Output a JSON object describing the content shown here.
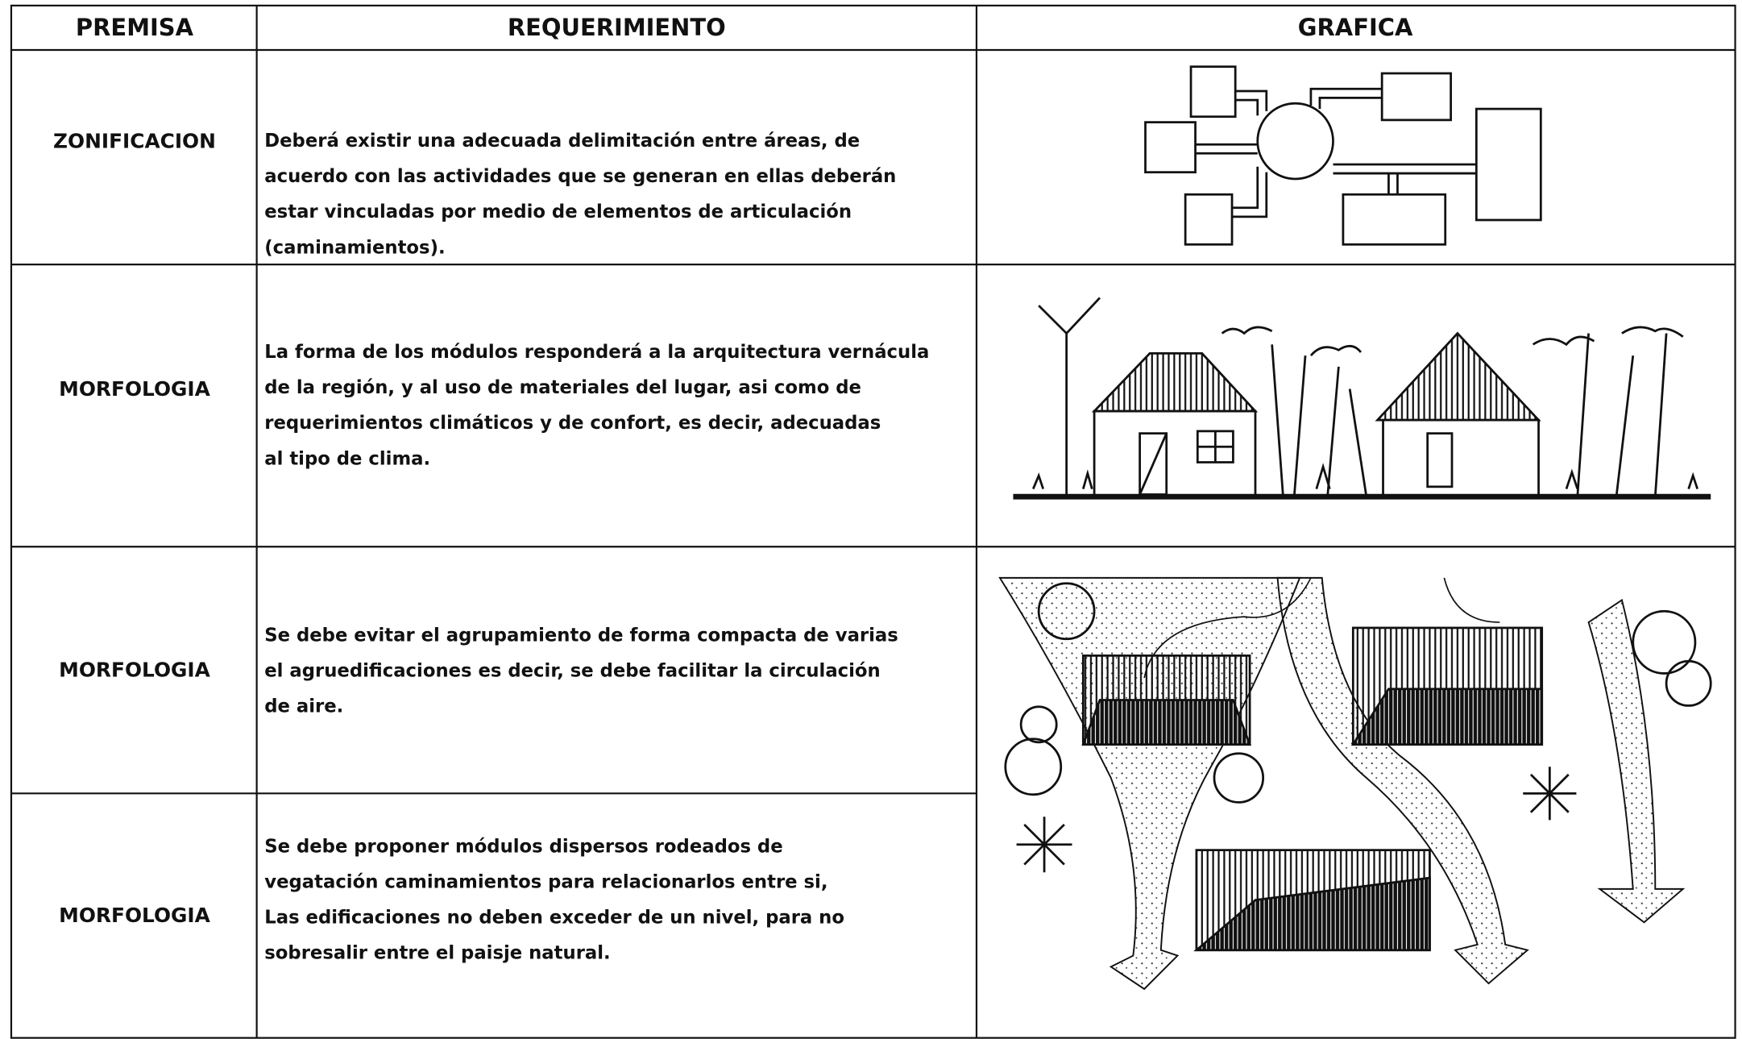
{
  "table": {
    "header": [
      "PREMISA",
      "REQUERIMIENTO",
      "GRAFICA"
    ],
    "rows": [
      {
        "premisa": "ZONIFICACION",
        "requerimiento": [
          "Deberá existir una adecuada delimitación entre áreas, de",
          "acuerdo con las actividades que se generan en ellas deberán",
          "estar vinculadas por medio de elementos de articulación",
          "(caminamientos)."
        ]
      },
      {
        "premisa": "MORFOLOGIA",
        "requerimiento": [
          "La forma de los módulos responderá a la arquitectura vernácula",
          "de la región, y al uso de materiales del lugar, asi como de",
          "requerimientos climáticos y de confort, es decir, adecuadas",
          "al tipo de clima."
        ]
      },
      {
        "premisa": "MORFOLOGIA",
        "requerimiento": [
          "Se debe evitar el agrupamiento de forma compacta de varias",
          "el agruedificaciones es decir, se debe facilitar la circulación",
          "de aire."
        ]
      },
      {
        "premisa": "MORFOLOGIA",
        "requerimiento": [
          "Se debe proponer módulos  dispersos rodeados de",
          "vegatación caminamientos para relacionarlos entre si,",
          "Las edificaciones no deben exceder de un nivel, para no",
          "sobresalir entre el paisje natural."
        ]
      }
    ]
  }
}
